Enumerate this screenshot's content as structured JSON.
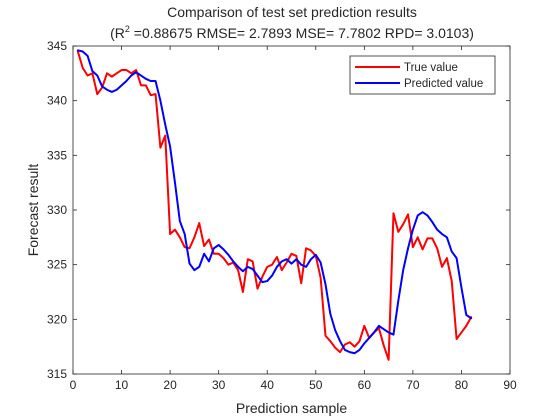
{
  "chart_data": {
    "type": "line",
    "title_line1": "Comparison of test set prediction results",
    "title_line2_prefix": "(R",
    "title_line2_sup": "2",
    "title_line2_rest": " =0.88675 RMSE= 2.7893 MSE= 7.7802 RPD= 3.0103)",
    "xlabel": "Prediction sample",
    "ylabel": "Forecast result",
    "xlim": [
      0,
      90
    ],
    "ylim": [
      315,
      345
    ],
    "xticks": [
      0,
      10,
      20,
      30,
      40,
      50,
      60,
      70,
      80,
      90
    ],
    "yticks": [
      315,
      320,
      325,
      330,
      335,
      340,
      345
    ],
    "legend_position": "top-right",
    "grid": false,
    "x": [
      1,
      2,
      3,
      4,
      5,
      6,
      7,
      8,
      9,
      10,
      11,
      12,
      13,
      14,
      15,
      16,
      17,
      18,
      19,
      20,
      21,
      22,
      23,
      24,
      25,
      26,
      27,
      28,
      29,
      30,
      31,
      32,
      33,
      34,
      35,
      36,
      37,
      38,
      39,
      40,
      41,
      42,
      43,
      44,
      45,
      46,
      47,
      48,
      49,
      50,
      51,
      52,
      53,
      54,
      55,
      56,
      57,
      58,
      59,
      60,
      61,
      62,
      63,
      64,
      65,
      66,
      67,
      68,
      69,
      70,
      71,
      72,
      73,
      74,
      75,
      76,
      77,
      78,
      79,
      80,
      81,
      82
    ],
    "series": [
      {
        "name": "True value",
        "color": "#ff0000",
        "values": [
          344.5,
          343.0,
          342.3,
          342.5,
          340.6,
          341.2,
          342.5,
          342.2,
          342.5,
          342.8,
          342.8,
          342.5,
          342.8,
          341.4,
          341.4,
          340.5,
          340.6,
          335.7,
          336.8,
          327.8,
          328.2,
          327.5,
          326.6,
          326.5,
          327.5,
          328.8,
          326.7,
          327.3,
          326.0,
          326.0,
          325.6,
          325.0,
          325.2,
          324.5,
          322.5,
          325.5,
          325.3,
          322.8,
          323.9,
          324.8,
          325.0,
          325.7,
          324.5,
          325.2,
          326.0,
          325.8,
          323.3,
          326.5,
          326.3,
          325.8,
          323.8,
          318.5,
          318.0,
          317.4,
          317.0,
          317.7,
          317.9,
          317.5,
          318.0,
          319.4,
          318.3,
          318.8,
          319.2,
          317.6,
          316.3,
          329.7,
          328.0,
          328.7,
          329.6,
          326.6,
          327.5,
          326.4,
          327.4,
          327.4,
          326.5,
          324.8,
          325.6,
          323.5,
          318.2,
          318.8,
          319.4,
          320.2
        ]
      },
      {
        "name": "Predicted value",
        "color": "#0000ff",
        "values": [
          344.6,
          344.5,
          344.1,
          342.7,
          342.3,
          341.3,
          341.0,
          340.8,
          341.0,
          341.4,
          341.8,
          342.3,
          342.6,
          342.3,
          342.0,
          341.8,
          341.8,
          340.0,
          337.8,
          335.8,
          332.5,
          329.0,
          327.8,
          325.1,
          324.5,
          324.8,
          326.0,
          325.3,
          326.5,
          326.8,
          326.4,
          325.9,
          325.3,
          324.8,
          324.4,
          324.8,
          324.6,
          324.0,
          323.4,
          323.5,
          324.0,
          324.8,
          325.3,
          325.5,
          325.1,
          325.5,
          325.0,
          324.8,
          325.5,
          325.9,
          325.2,
          323.2,
          320.5,
          319.0,
          318.0,
          317.2,
          317.0,
          316.9,
          317.2,
          317.8,
          318.3,
          318.8,
          319.4,
          319.1,
          318.8,
          318.6,
          321.7,
          324.5,
          326.5,
          328.2,
          329.5,
          329.8,
          329.5,
          328.9,
          328.2,
          327.8,
          327.5,
          326.2,
          325.6,
          322.9,
          320.4,
          320.1
        ]
      }
    ]
  }
}
